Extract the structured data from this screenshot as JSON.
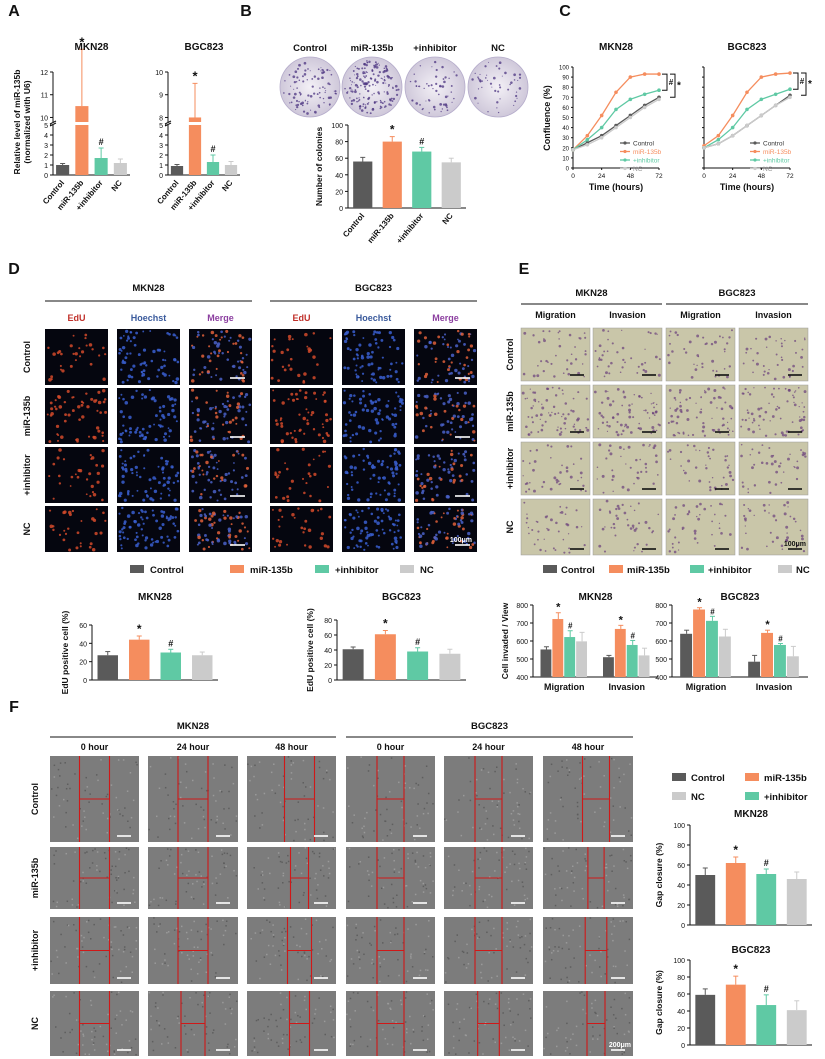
{
  "colors": {
    "control": "#5a5a5a",
    "mir135b": "#f58d5e",
    "inhibitor": "#5fc9a4",
    "nc": "#cbcbcb",
    "edu_red": "#c0302a",
    "hoechst_blue": "#3a5a9c",
    "merge_purple": "#8c3fa0",
    "gap_line": "#d01818"
  },
  "groups": [
    "Control",
    "miR-135b",
    "+inhibitor",
    "NC"
  ],
  "panel_labels": [
    "A",
    "B",
    "C",
    "D",
    "E",
    "F"
  ],
  "panelA": {
    "ylabel_line1": "Relative level of miR-135b",
    "ylabel_line2": "(normalized with U6)",
    "charts": [
      {
        "title": "MKN28"
      },
      {
        "title": "BGC823"
      }
    ]
  },
  "panelB": {
    "dish_labels": [
      "Control",
      "miR-135b",
      "+inhibitor",
      "NC"
    ]
  },
  "panelC": {
    "ylabel": "Confluence (%)",
    "xlabel": "Time (hours)"
  },
  "panelD": {
    "cell_lines": [
      "MKN28",
      "BGC823"
    ],
    "channels": [
      "EdU",
      "Hoechst",
      "Merge"
    ],
    "rows": [
      "Control",
      "miR-135b",
      "+inhibitor",
      "NC"
    ],
    "scale": "100μm"
  },
  "panelE": {
    "cell_lines": [
      "MKN28",
      "BGC823"
    ],
    "assays": [
      "Migration",
      "Invasion"
    ],
    "rows": [
      "Control",
      "miR-135b",
      "+inhibitor",
      "NC"
    ],
    "scale": "100μm"
  },
  "panelF": {
    "cell_lines": [
      "MKN28",
      "BGC823"
    ],
    "times": [
      "0 hour",
      "24 hour",
      "48 hour"
    ],
    "rows": [
      "Control",
      "miR-135b",
      "+inhibitor",
      "NC"
    ],
    "scale": "200μm",
    "legend": [
      "Control",
      "miR-135b",
      "NC",
      "+inhibitor"
    ]
  },
  "chart_data": [
    {
      "id": "A-MKN28",
      "type": "bar",
      "title": "MKN28",
      "categories": [
        "Control",
        "miR-135b",
        "+inhibitor",
        "NC"
      ],
      "values": [
        1.0,
        10.5,
        1.7,
        1.2
      ],
      "errors": [
        0.15,
        2.5,
        1.0,
        0.4
      ],
      "ylabel": "Relative level of miR-135b (normalized with U6)",
      "y_break": true,
      "yticks_low": [
        "0",
        "1",
        "2",
        "3",
        "4",
        "5"
      ],
      "yticks_high": [
        "10",
        "11",
        "12"
      ],
      "annotations": [
        "",
        "*",
        "#",
        ""
      ]
    },
    {
      "id": "A-BGC823",
      "type": "bar",
      "title": "BGC823",
      "categories": [
        "Control",
        "miR-135b",
        "+inhibitor",
        "NC"
      ],
      "values": [
        0.9,
        8.0,
        1.3,
        1.0
      ],
      "errors": [
        0.15,
        1.5,
        0.7,
        0.35
      ],
      "y_break": true,
      "yticks_low": [
        "0",
        "1",
        "2",
        "3",
        "4",
        "5"
      ],
      "yticks_high": [
        "8",
        "9",
        "10"
      ],
      "annotations": [
        "",
        "*",
        "#",
        ""
      ]
    },
    {
      "id": "B",
      "type": "bar",
      "categories": [
        "Control",
        "miR-135b",
        "+inhibitor",
        "NC"
      ],
      "values": [
        56,
        80,
        68,
        55
      ],
      "errors": [
        5,
        6,
        5,
        5
      ],
      "ylabel": "Number of colonies",
      "ylim": [
        0,
        100
      ],
      "yticks": [
        "0",
        "20",
        "40",
        "60",
        "80",
        "100"
      ],
      "annotations": [
        "",
        "*",
        "#",
        ""
      ]
    },
    {
      "id": "C-MKN28",
      "type": "line",
      "title": "MKN28",
      "x": [
        0,
        12,
        24,
        36,
        48,
        60,
        72
      ],
      "xticks": [
        "0",
        "24",
        "48",
        "72"
      ],
      "ylim": [
        0,
        100
      ],
      "yticks": [
        "0",
        "10",
        "20",
        "30",
        "40",
        "50",
        "60",
        "70",
        "80",
        "90",
        "100"
      ],
      "series": [
        {
          "name": "Control",
          "values": [
            18,
            25,
            32,
            42,
            52,
            62,
            70
          ]
        },
        {
          "name": "miR-135b",
          "values": [
            18,
            32,
            52,
            75,
            90,
            93,
            93
          ]
        },
        {
          "name": "+inhibitor",
          "values": [
            18,
            28,
            40,
            58,
            68,
            73,
            77
          ]
        },
        {
          "name": "NC",
          "values": [
            18,
            23,
            30,
            40,
            50,
            60,
            68
          ]
        }
      ],
      "annotations": [
        "#",
        "*"
      ]
    },
    {
      "id": "C-BGC823",
      "type": "line",
      "title": "BGC823",
      "x": [
        0,
        12,
        24,
        36,
        48,
        60,
        72
      ],
      "xticks": [
        "0",
        "24",
        "48",
        "72"
      ],
      "ylim": [
        0,
        100
      ],
      "yticks": [
        "0",
        "10",
        "20",
        "30",
        "40",
        "50",
        "60",
        "70",
        "80",
        "90",
        "100"
      ],
      "series": [
        {
          "name": "Control",
          "values": [
            20,
            24,
            32,
            42,
            52,
            62,
            72
          ]
        },
        {
          "name": "miR-135b",
          "values": [
            22,
            32,
            52,
            75,
            90,
            93,
            94
          ]
        },
        {
          "name": "+inhibitor",
          "values": [
            20,
            28,
            40,
            58,
            68,
            73,
            78
          ]
        },
        {
          "name": "NC",
          "values": [
            20,
            24,
            32,
            42,
            52,
            62,
            70
          ]
        }
      ],
      "annotations": [
        "#",
        "*"
      ]
    },
    {
      "id": "D-MKN28",
      "type": "bar",
      "title": "MKN28",
      "categories": [
        "Control",
        "miR-135b",
        "+inhibitor",
        "NC"
      ],
      "values": [
        27,
        44,
        30,
        27
      ],
      "errors": [
        4,
        4,
        3.5,
        3.5
      ],
      "ylabel": "EdU positive cell (%)",
      "ylim": [
        0,
        60
      ],
      "yticks": [
        "0",
        "20",
        "40",
        "60"
      ],
      "annotations": [
        "",
        "*",
        "#",
        ""
      ]
    },
    {
      "id": "D-BGC823",
      "type": "bar",
      "title": "BGC823",
      "categories": [
        "Control",
        "miR-135b",
        "+inhibitor",
        "NC"
      ],
      "values": [
        41,
        61,
        38,
        35
      ],
      "errors": [
        3,
        5,
        5,
        6
      ],
      "ylabel": "EdU positive cell (%)",
      "ylim": [
        0,
        80
      ],
      "yticks": [
        "0",
        "20",
        "40",
        "60",
        "80"
      ],
      "annotations": [
        "",
        "*",
        "#",
        ""
      ]
    },
    {
      "id": "E-MKN28",
      "type": "bar",
      "title": "MKN28",
      "categories": [
        "Migration",
        "Invasion"
      ],
      "ylabel": "Cell invaded / View",
      "ylim": [
        400,
        800
      ],
      "yticks": [
        "400",
        "500",
        "600",
        "700",
        "800"
      ],
      "series": [
        {
          "name": "Control",
          "values": [
            553,
            510
          ],
          "errors": [
            15,
            10
          ]
        },
        {
          "name": "miR-135b",
          "values": [
            722,
            667
          ],
          "errors": [
            35,
            20
          ]
        },
        {
          "name": "+inhibitor",
          "values": [
            622,
            578
          ],
          "errors": [
            35,
            25
          ]
        },
        {
          "name": "NC",
          "values": [
            598,
            520
          ],
          "errors": [
            50,
            40
          ]
        }
      ],
      "annotations": [
        [
          "",
          "*",
          "#",
          ""
        ],
        [
          "",
          "*",
          "#",
          ""
        ]
      ]
    },
    {
      "id": "E-BGC823",
      "type": "bar",
      "title": "BGC823",
      "categories": [
        "Migration",
        "Invasion"
      ],
      "ylim": [
        400,
        800
      ],
      "yticks": [
        "400",
        "500",
        "600",
        "700",
        "800"
      ],
      "series": [
        {
          "name": "Control",
          "values": [
            640,
            485
          ],
          "errors": [
            20,
            35
          ]
        },
        {
          "name": "miR-135b",
          "values": [
            775,
            645
          ],
          "errors": [
            10,
            15
          ]
        },
        {
          "name": "+inhibitor",
          "values": [
            712,
            578
          ],
          "errors": [
            25,
            8
          ]
        },
        {
          "name": "NC",
          "values": [
            625,
            515
          ],
          "errors": [
            40,
            55
          ]
        }
      ],
      "annotations": [
        [
          "",
          "*",
          "#",
          ""
        ],
        [
          "",
          "*",
          "#",
          ""
        ]
      ]
    },
    {
      "id": "F-MKN28",
      "type": "bar",
      "title": "MKN28",
      "categories": [
        "Control",
        "miR-135b",
        "+inhibitor",
        "NC"
      ],
      "values": [
        50,
        62,
        51,
        46
      ],
      "errors": [
        7,
        6,
        5,
        7
      ],
      "ylabel": "Gap closure (%)",
      "ylim": [
        0,
        100
      ],
      "yticks": [
        "0",
        "20",
        "40",
        "60",
        "80",
        "100"
      ],
      "annotations": [
        "",
        "*",
        "#",
        ""
      ]
    },
    {
      "id": "F-BGC823",
      "type": "bar",
      "title": "BGC823",
      "categories": [
        "Control",
        "miR-135b",
        "+inhibitor",
        "NC"
      ],
      "values": [
        59,
        71,
        47,
        41
      ],
      "errors": [
        7,
        10,
        12,
        11
      ],
      "ylabel": "Gap closure (%)",
      "ylim": [
        0,
        100
      ],
      "yticks": [
        "0",
        "20",
        "40",
        "60",
        "80",
        "100"
      ],
      "annotations": [
        "",
        "*",
        "#",
        ""
      ]
    }
  ]
}
